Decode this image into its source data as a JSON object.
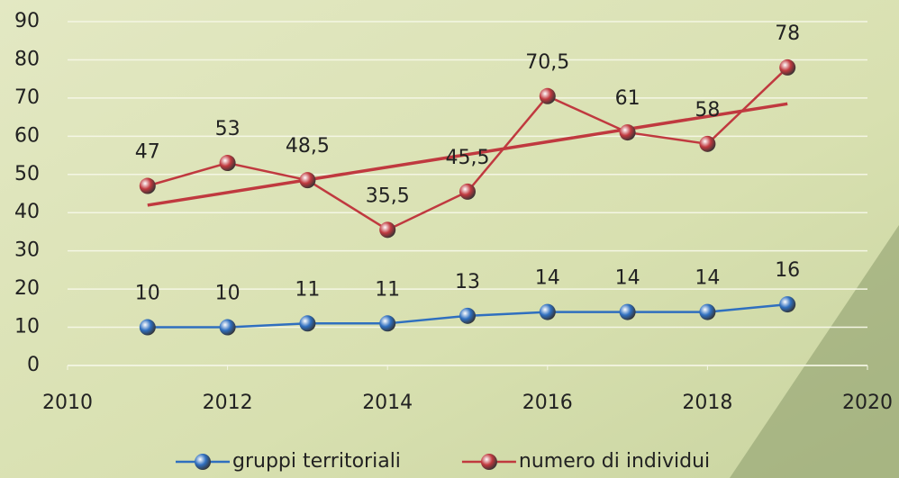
{
  "chart_data": {
    "type": "line",
    "x": [
      2011,
      2012,
      2013,
      2014,
      2015,
      2016,
      2017,
      2018,
      2019
    ],
    "series": [
      {
        "name": "gruppi territoriali",
        "color": "#2f6fbf",
        "values": [
          10,
          10,
          11,
          11,
          13,
          14,
          14,
          14,
          16
        ]
      },
      {
        "name": "numero di individui",
        "color": "#c0393f",
        "values": [
          47,
          53,
          48.5,
          35.5,
          45.5,
          70.5,
          61,
          58,
          78
        ],
        "value_labels": [
          "47",
          "53",
          "48,5",
          "35,5",
          "45,5",
          "70,5",
          "61",
          "58",
          "78"
        ],
        "trendline": true
      }
    ],
    "xlim": [
      2010,
      2020
    ],
    "xticks": [
      2010,
      2012,
      2014,
      2016,
      2018,
      2020
    ],
    "ylim": [
      0,
      90
    ],
    "yticks": [
      0,
      10,
      20,
      30,
      40,
      50,
      60,
      70,
      80,
      90
    ],
    "grid": true,
    "legend": "bottom"
  }
}
